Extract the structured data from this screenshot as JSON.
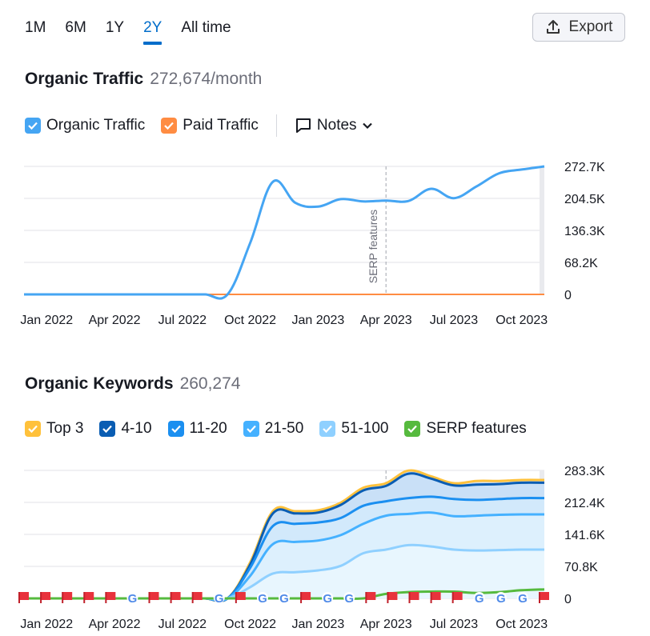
{
  "periods": {
    "items": [
      "1M",
      "6M",
      "1Y",
      "2Y",
      "All time"
    ],
    "active": "2Y"
  },
  "export": {
    "label": "Export",
    "icon": "upload-icon"
  },
  "traffic": {
    "title": "Organic Traffic",
    "value": "272,674/month",
    "legend": [
      {
        "label": "Organic Traffic",
        "color": "#45a5f3",
        "checked": true
      },
      {
        "label": "Paid Traffic",
        "color": "#ff8c42",
        "checked": true
      }
    ],
    "notes_label": "Notes"
  },
  "keywords": {
    "title": "Organic Keywords",
    "value": "260,274",
    "legend": [
      {
        "label": "Top 3",
        "color": "#ffc13b",
        "checked": true
      },
      {
        "label": "4-10",
        "color": "#0a5db3",
        "checked": true
      },
      {
        "label": "11-20",
        "color": "#1b8ff0",
        "checked": true
      },
      {
        "label": "21-50",
        "color": "#45b1ff",
        "checked": true
      },
      {
        "label": "51-100",
        "color": "#8fd0ff",
        "checked": true
      },
      {
        "label": "SERP features",
        "color": "#56ba3e",
        "checked": true
      }
    ]
  },
  "chart_data": [
    {
      "type": "line",
      "x": [
        "Dec 2021",
        "Jan 2022",
        "Feb 2022",
        "Mar 2022",
        "Apr 2022",
        "May 2022",
        "Jun 2022",
        "Jul 2022",
        "Aug 2022",
        "Sep 2022",
        "Oct 2022",
        "Nov 2022",
        "Dec 2022",
        "Jan 2023",
        "Feb 2023",
        "Mar 2023",
        "Apr 2023",
        "May 2023",
        "Jun 2023",
        "Jul 2023",
        "Aug 2023",
        "Sep 2023",
        "Oct 2023",
        "Nov 2023"
      ],
      "x_tick_labels": [
        "Jan 2022",
        "Apr 2022",
        "Jul 2022",
        "Oct 2022",
        "Jan 2023",
        "Apr 2023",
        "Jul 2023",
        "Oct 2023"
      ],
      "y_tick_labels": [
        "272.7K",
        "204.5K",
        "136.3K",
        "68.2K",
        "0"
      ],
      "ylim": [
        0,
        272700
      ],
      "annotation": "SERP features",
      "series": [
        {
          "name": "Organic Traffic",
          "color": "#45a5f3",
          "values": [
            0,
            0,
            0,
            0,
            0,
            0,
            0,
            0,
            0,
            0,
            110000,
            240000,
            195000,
            187000,
            203000,
            198000,
            200000,
            199000,
            225000,
            205000,
            230000,
            258000,
            266000,
            272674
          ]
        },
        {
          "name": "Paid Traffic",
          "color": "#ff8c42",
          "values": [
            0,
            0,
            0,
            0,
            0,
            0,
            0,
            0,
            0,
            0,
            0,
            0,
            0,
            0,
            0,
            0,
            0,
            0,
            0,
            0,
            0,
            0,
            0,
            0
          ]
        }
      ]
    },
    {
      "type": "area",
      "x": [
        "Dec 2021",
        "Jan 2022",
        "Feb 2022",
        "Mar 2022",
        "Apr 2022",
        "May 2022",
        "Jun 2022",
        "Jul 2022",
        "Aug 2022",
        "Sep 2022",
        "Oct 2022",
        "Nov 2022",
        "Dec 2022",
        "Jan 2023",
        "Feb 2023",
        "Mar 2023",
        "Apr 2023",
        "May 2023",
        "Jun 2023",
        "Jul 2023",
        "Aug 2023",
        "Sep 2023",
        "Oct 2023",
        "Nov 2023"
      ],
      "x_tick_labels": [
        "Jan 2022",
        "Apr 2022",
        "Jul 2022",
        "Oct 2022",
        "Jan 2023",
        "Apr 2023",
        "Jul 2023",
        "Oct 2023"
      ],
      "y_tick_labels": [
        "283.3K",
        "212.4K",
        "141.6K",
        "70.8K",
        "0"
      ],
      "ylim": [
        0,
        283300
      ],
      "annotation": "SERP features",
      "series": [
        {
          "name": "Top 3",
          "color": "#ffc13b",
          "values": [
            0,
            0,
            0,
            0,
            0,
            0,
            0,
            0,
            0,
            0,
            80000,
            193000,
            193000,
            195000,
            212000,
            245000,
            255000,
            283000,
            270000,
            255000,
            260000,
            260000,
            262000,
            262000
          ]
        },
        {
          "name": "4-10",
          "color": "#0a5db3",
          "values": [
            0,
            0,
            0,
            0,
            0,
            0,
            0,
            0,
            0,
            0,
            75000,
            188000,
            188000,
            190000,
            207000,
            239000,
            249000,
            276000,
            265000,
            250000,
            252000,
            253000,
            256000,
            256000
          ]
        },
        {
          "name": "11-20",
          "color": "#1b8ff0",
          "values": [
            0,
            0,
            0,
            0,
            0,
            0,
            0,
            0,
            0,
            0,
            68000,
            160000,
            165000,
            168000,
            178000,
            205000,
            215000,
            222000,
            225000,
            220000,
            218000,
            220000,
            222000,
            222000
          ]
        },
        {
          "name": "21-50",
          "color": "#45b1ff",
          "values": [
            0,
            0,
            0,
            0,
            0,
            0,
            0,
            0,
            0,
            0,
            50000,
            120000,
            125000,
            128000,
            140000,
            165000,
            183000,
            187000,
            190000,
            182000,
            183000,
            185000,
            186000,
            186000
          ]
        },
        {
          "name": "51-100",
          "color": "#8fd0ff",
          "values": [
            0,
            0,
            0,
            0,
            0,
            0,
            0,
            0,
            0,
            0,
            25000,
            55000,
            58000,
            62000,
            72000,
            100000,
            108000,
            118000,
            115000,
            108000,
            106000,
            107000,
            108000,
            108000
          ]
        },
        {
          "name": "SERP features",
          "color": "#56ba3e",
          "values": [
            0,
            0,
            0,
            0,
            0,
            0,
            0,
            0,
            0,
            0,
            0,
            0,
            0,
            0,
            0,
            0,
            10000,
            14000,
            15000,
            15000,
            12000,
            14000,
            18000,
            20000
          ]
        }
      ],
      "event_markers": [
        "flag",
        "flag",
        "flag",
        "flag",
        "flag",
        "google",
        "flag",
        "flag",
        "flag",
        "google",
        "flag",
        "google",
        "google",
        "flag",
        "google",
        "google",
        "flag",
        "flag",
        "flag",
        "flag",
        "flag",
        "google",
        "google",
        "google",
        "flag"
      ]
    }
  ]
}
